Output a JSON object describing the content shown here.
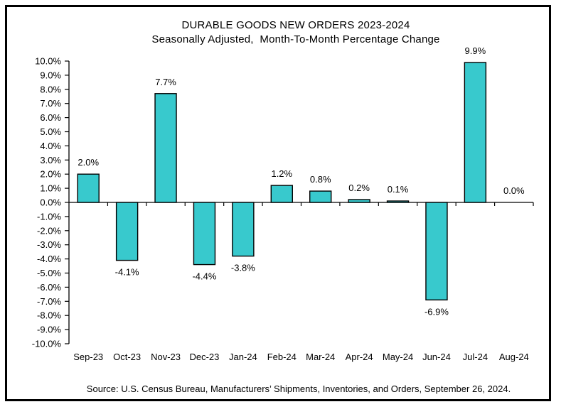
{
  "window": {
    "background": "#ffffff",
    "border_color": "#000000",
    "text_color": "#000000"
  },
  "header": {
    "title": "DURABLE GOODS NEW ORDERS 2023-2024",
    "subtitle": "Seasonally Adjusted,  Month-To-Month Percentage Change"
  },
  "chart_data": {
    "type": "bar",
    "title": "DURABLE GOODS NEW ORDERS 2023-2024",
    "subtitle": "Seasonally Adjusted,  Month-To-Month Percentage Change",
    "categories": [
      "Sep-23",
      "Oct-23",
      "Nov-23",
      "Dec-23",
      "Jan-24",
      "Feb-24",
      "Mar-24",
      "Apr-24",
      "May-24",
      "Jun-24",
      "Jul-24",
      "Aug-24"
    ],
    "values": [
      2.0,
      -4.1,
      7.7,
      -4.4,
      -3.8,
      1.2,
      0.8,
      0.2,
      0.1,
      -6.9,
      9.9,
      0.0
    ],
    "value_labels": [
      "2.0%",
      "-4.1%",
      "7.7%",
      "-4.4%",
      "-3.8%",
      "1.2%",
      "0.8%",
      "0.2%",
      "0.1%",
      "-6.9%",
      "9.9%",
      "0.0%"
    ],
    "xlabel": "",
    "ylabel": "",
    "ylim": [
      -10,
      10
    ],
    "ytick_step": 1,
    "ytick_labels": [
      "10.0%",
      "9.0%",
      "8.0%",
      "7.0%",
      "6.0%",
      "5.0%",
      "4.0%",
      "3.0%",
      "2.0%",
      "1.0%",
      "0.0%",
      "-1.0%",
      "-2.0%",
      "-3.0%",
      "-4.0%",
      "-5.0%",
      "-6.0%",
      "-7.0%",
      "-8.0%",
      "-9.0%",
      "-10.0%"
    ],
    "grid": false,
    "legend": false,
    "bar_color": "#38C9CD",
    "bar_border_color": "#000000",
    "axis_color": "#000000"
  },
  "footer": {
    "source": "Source: U.S. Census Bureau, Manufacturers’ Shipments, Inventories, and Orders, September 26, 2024."
  }
}
